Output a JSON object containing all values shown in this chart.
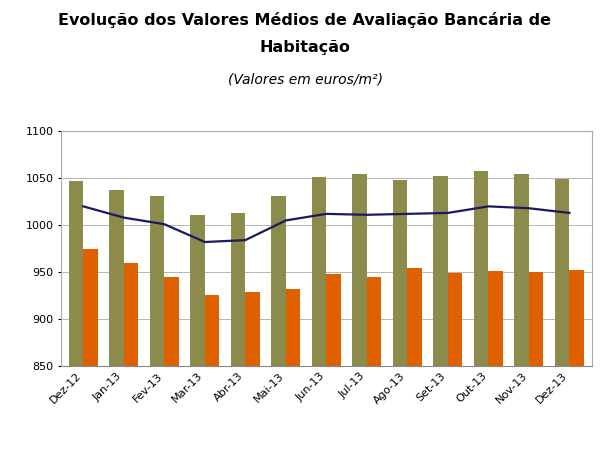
{
  "title_line1": "Evolução dos Valores Médios de Avaliação Bancária de",
  "title_line2": "Habitação",
  "subtitle": "(Valores em euros/m²)",
  "categories": [
    "Dez-12",
    "Jan-13",
    "Fev-13",
    "Mar-13",
    "Abr-13",
    "Mai-13",
    "Jun-13",
    "Jul-13",
    "Ago-13",
    "Set-13",
    "Out-13",
    "Nov-13",
    "Dez-13"
  ],
  "apartamentos": [
    1047,
    1037,
    1031,
    1011,
    1013,
    1031,
    1051,
    1054,
    1048,
    1052,
    1058,
    1055,
    1049
  ],
  "moradias": [
    975,
    960,
    945,
    925,
    929,
    932,
    948,
    945,
    954,
    949,
    951,
    950,
    952
  ],
  "habitacao": [
    1020,
    1008,
    1001,
    982,
    984,
    1005,
    1012,
    1011,
    1012,
    1013,
    1020,
    1018,
    1013
  ],
  "ylim": [
    850,
    1100
  ],
  "yticks": [
    850,
    900,
    950,
    1000,
    1050,
    1100
  ],
  "bar_color_apartamentos": "#8B8B4B",
  "bar_color_moradias": "#E06000",
  "line_color_habitacao": "#1A1A5E",
  "background_color": "#FFFFFF",
  "grid_color": "#AAAAAA",
  "title_fontsize": 11.5,
  "subtitle_fontsize": 10,
  "tick_fontsize": 8,
  "legend_fontsize": 8.5,
  "bar_width": 0.36
}
